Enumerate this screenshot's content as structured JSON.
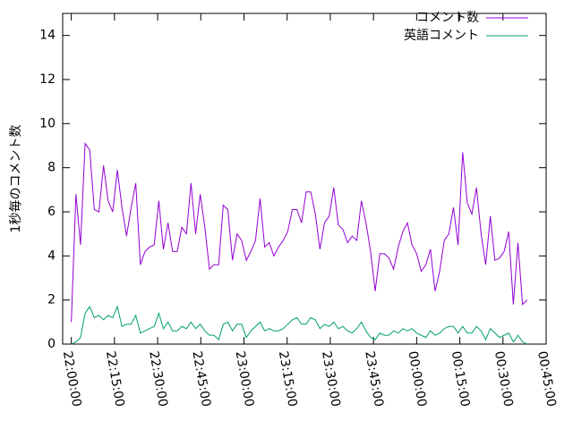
{
  "chart_data": {
    "type": "line",
    "ylabel": "1秒毎のコメント数",
    "x": [
      0,
      1.6,
      3.2,
      4.8,
      6.4,
      8,
      9.6,
      11.2,
      12.8,
      14.4,
      16,
      17.6,
      19.2,
      20.8,
      22.4,
      24,
      25.6,
      27.2,
      28.8,
      30.4,
      32,
      33.6,
      35.2,
      36.8,
      38.4,
      40,
      41.6,
      43.2,
      44.8,
      46.4,
      48,
      49.6,
      51.2,
      52.8,
      54.4,
      56,
      57.6,
      59.2,
      60.8,
      62.4,
      64,
      65.6,
      67.2,
      68.8,
      70.4,
      72,
      73.6,
      75.2,
      76.8,
      78.4,
      80,
      81.6,
      83.2,
      84.8,
      86.4,
      88,
      89.6,
      91.2,
      92.8,
      94.4,
      96,
      97.6,
      99.2,
      100.8,
      102.4,
      104,
      105.6,
      107.2,
      108.8,
      110.4,
      112,
      113.6,
      115.2,
      116.8,
      118.4,
      120,
      121.6,
      123.2,
      124.8,
      126.4,
      128,
      129.6,
      131.2,
      132.8,
      134.4,
      136,
      137.6,
      139.2,
      140.8,
      142.4,
      144,
      145.6,
      147.2,
      148.8,
      150.4,
      152,
      153.6,
      155.2,
      156.8,
      158.4
    ],
    "series": [
      {
        "name": "コメント数",
        "color": "#9400d3",
        "values": [
          1.0,
          6.8,
          4.5,
          9.1,
          8.8,
          6.1,
          6.0,
          8.1,
          6.5,
          6.0,
          7.9,
          6.2,
          4.9,
          6.2,
          7.3,
          3.6,
          4.2,
          4.4,
          4.5,
          6.5,
          4.3,
          5.5,
          4.2,
          4.2,
          5.3,
          5.0,
          7.3,
          5.0,
          6.8,
          5.3,
          3.4,
          3.6,
          3.6,
          6.3,
          6.1,
          3.8,
          5.0,
          4.7,
          3.8,
          4.2,
          4.7,
          6.6,
          4.4,
          4.6,
          4.0,
          4.4,
          4.7,
          5.1,
          6.1,
          6.1,
          5.5,
          6.9,
          6.9,
          5.9,
          4.3,
          5.5,
          5.8,
          7.1,
          5.4,
          5.2,
          4.6,
          4.9,
          4.7,
          6.5,
          5.5,
          4.2,
          2.4,
          4.1,
          4.1,
          3.9,
          3.4,
          4.4,
          5.1,
          5.5,
          4.5,
          4.1,
          3.3,
          3.6,
          4.3,
          2.4,
          3.3,
          4.7,
          5.0,
          6.2,
          4.5,
          8.7,
          6.4,
          5.9,
          7.1,
          5.0,
          3.6,
          5.8,
          3.8,
          3.9,
          4.2,
          5.1,
          1.8,
          4.6,
          1.8,
          2.0
        ]
      },
      {
        "name": "英語コメント",
        "color": "#009e73",
        "values": [
          0,
          0.1,
          0.3,
          1.4,
          1.7,
          1.2,
          1.3,
          1.1,
          1.3,
          1.2,
          1.7,
          0.8,
          0.9,
          0.9,
          1.3,
          0.5,
          0.6,
          0.7,
          0.8,
          1.4,
          0.7,
          1.0,
          0.6,
          0.6,
          0.8,
          0.7,
          1.0,
          0.7,
          0.9,
          0.6,
          0.4,
          0.4,
          0.2,
          0.9,
          1.0,
          0.6,
          0.9,
          0.9,
          0.3,
          0.6,
          0.8,
          1.0,
          0.6,
          0.7,
          0.6,
          0.6,
          0.7,
          0.9,
          1.1,
          1.2,
          0.9,
          0.9,
          1.2,
          1.1,
          0.7,
          0.9,
          0.8,
          1.0,
          0.7,
          0.8,
          0.6,
          0.5,
          0.7,
          1.0,
          0.6,
          0.3,
          0.2,
          0.5,
          0.4,
          0.4,
          0.6,
          0.5,
          0.7,
          0.6,
          0.7,
          0.5,
          0.4,
          0.3,
          0.6,
          0.4,
          0.5,
          0.7,
          0.8,
          0.8,
          0.5,
          0.8,
          0.5,
          0.5,
          0.8,
          0.6,
          0.2,
          0.7,
          0.5,
          0.3,
          0.4,
          0.5,
          0.1,
          0.4,
          0.1,
          0.0
        ]
      }
    ],
    "xlim": [
      -3,
      165
    ],
    "xticks": [
      {
        "value": 0,
        "label": "22:00:00"
      },
      {
        "value": 15,
        "label": "22:15:00"
      },
      {
        "value": 30,
        "label": "22:30:00"
      },
      {
        "value": 45,
        "label": "22:45:00"
      },
      {
        "value": 60,
        "label": "23:00:00"
      },
      {
        "value": 75,
        "label": "23:15:00"
      },
      {
        "value": 90,
        "label": "23:30:00"
      },
      {
        "value": 105,
        "label": "23:45:00"
      },
      {
        "value": 120,
        "label": "00:00:00"
      },
      {
        "value": 135,
        "label": "00:15:00"
      },
      {
        "value": 150,
        "label": "00:30:00"
      },
      {
        "value": 165,
        "label": "00:45:00"
      }
    ],
    "ylim": [
      0,
      15
    ],
    "yticks": [
      0,
      2,
      4,
      6,
      8,
      10,
      12,
      14
    ],
    "legend": "top-right"
  }
}
